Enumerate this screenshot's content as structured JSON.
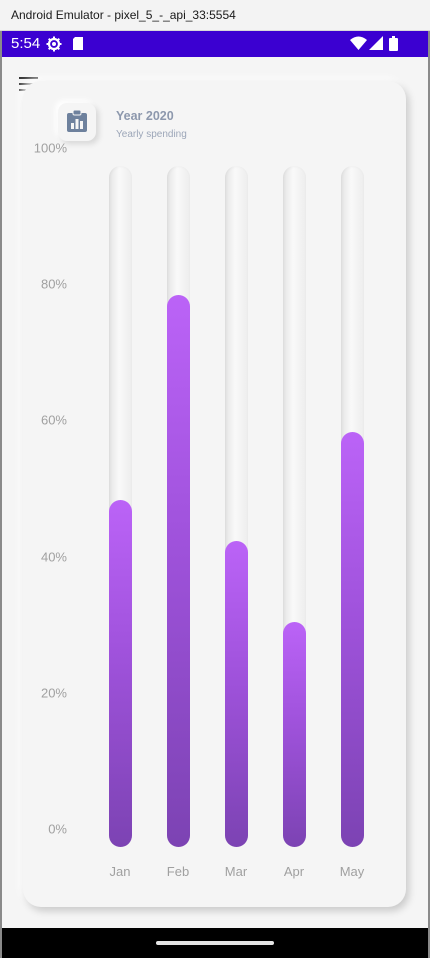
{
  "window": {
    "title": "Android Emulator - pixel_5_-_api_33:5554"
  },
  "statusbar": {
    "time": "5:54"
  },
  "header": {
    "title": "Year 2020",
    "subtitle": "Yearly spending",
    "icon": "clipboard-chart-icon"
  },
  "colors": {
    "accent": "#bb63f7",
    "accent_dark": "#7c43b3",
    "status_bar": "#3b00d1"
  },
  "chart_data": {
    "type": "bar",
    "categories": [
      "Jan",
      "Feb",
      "Mar",
      "Apr",
      "May"
    ],
    "values": [
      51,
      81,
      45,
      33,
      61
    ],
    "y_ticks": [
      "0%",
      "20%",
      "40%",
      "60%",
      "80%",
      "100%"
    ],
    "ylim": [
      0,
      100
    ],
    "title": "Year 2020",
    "subtitle": "Yearly spending"
  }
}
